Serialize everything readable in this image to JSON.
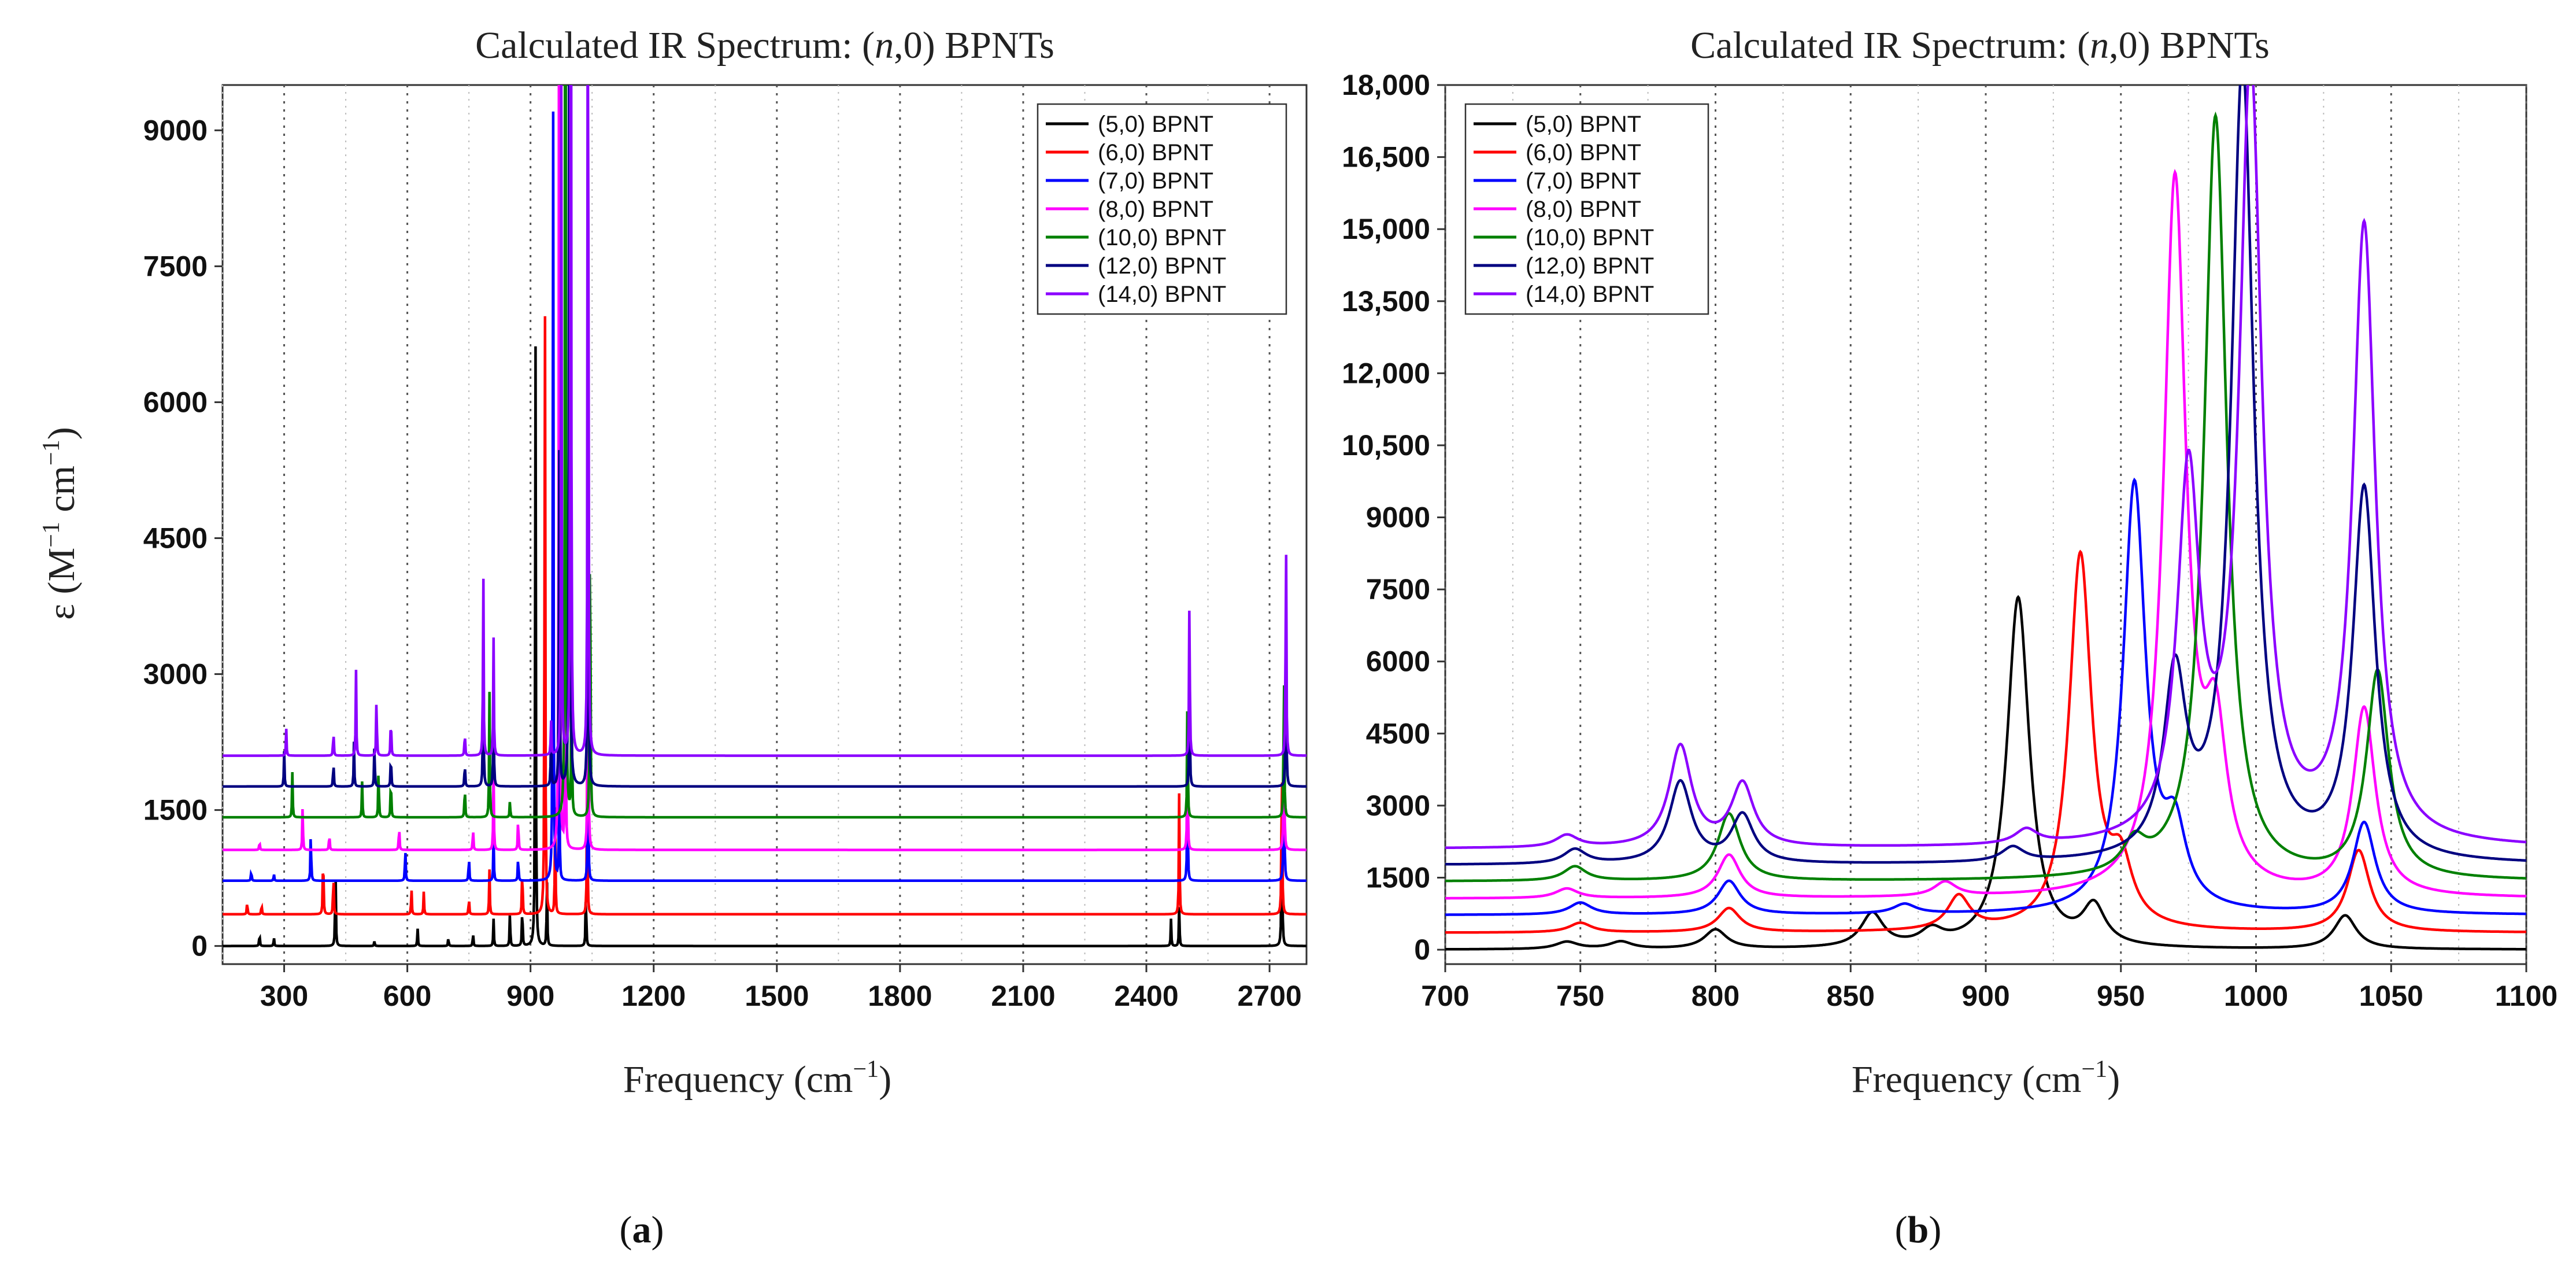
{
  "chart_data": [
    {
      "id": "a",
      "type": "line",
      "title": "Calculated IR Spectrum: (n,0) BPNTs",
      "title_parts": [
        "Calculated IR Spectrum: (",
        "n",
        ",0) BPNTs"
      ],
      "xlabel": "Frequency (cm",
      "xlabel_sup": "−1",
      "xlabel_end": ")",
      "ylabel": "ε (M",
      "ylabel_sup1": "−1",
      "ylabel_mid": " cm",
      "ylabel_sup2": "−1",
      "ylabel_end": ")",
      "caption": [
        "(",
        "a",
        ")"
      ],
      "xlim": [
        150,
        2790
      ],
      "ylim": [
        -200,
        9500
      ],
      "xticks": [
        300,
        600,
        900,
        1200,
        1500,
        1800,
        2100,
        2400,
        2700
      ],
      "xtick_labels": [
        "300",
        "600",
        "900",
        "1200",
        "1500",
        "1800",
        "2100",
        "2400",
        "2700"
      ],
      "yticks": [
        0,
        1500,
        3000,
        4500,
        6000,
        7500,
        9000
      ],
      "ytick_labels": [
        "0",
        "1500",
        "3000",
        "4500",
        "6000",
        "7500",
        "9000"
      ],
      "grid": true,
      "legend_position": "top-right",
      "width": 0.9,
      "series": [
        {
          "name": "(5,0) BPNT",
          "color": "#000000",
          "baseline": 0,
          "peaks": [
            [
              240,
              150
            ],
            [
              275,
              100
            ],
            [
              425,
              1000
            ],
            [
              520,
              60
            ],
            [
              625,
              200
            ],
            [
              700,
              100
            ],
            [
              760,
              150
            ],
            [
              810,
              300
            ],
            [
              850,
              400
            ],
            [
              880,
              500
            ],
            [
              912,
              7350
            ],
            [
              940,
              800
            ],
            [
              1035,
              700
            ],
            [
              2460,
              300
            ],
            [
              2480,
              450
            ],
            [
              2730,
              2200
            ]
          ]
        },
        {
          "name": "(6,0) BPNT",
          "color": "#ff0000",
          "baseline": 350,
          "peaks": [
            [
              210,
              150
            ],
            [
              245,
              120
            ],
            [
              395,
              800
            ],
            [
              420,
              500
            ],
            [
              610,
              300
            ],
            [
              640,
              250
            ],
            [
              750,
              200
            ],
            [
              800,
              500
            ],
            [
              880,
              600
            ],
            [
              935,
              7900
            ],
            [
              960,
              1200
            ],
            [
              1038,
              1700
            ],
            [
              2480,
              1400
            ],
            [
              2730,
              2100
            ]
          ]
        },
        {
          "name": "(7,0) BPNT",
          "color": "#0000ff",
          "baseline": 720,
          "peaks": [
            [
              220,
              120
            ],
            [
              275,
              80
            ],
            [
              365,
              600
            ],
            [
              595,
              400
            ],
            [
              750,
              300
            ],
            [
              810,
              500
            ],
            [
              870,
              300
            ],
            [
              955,
              8900
            ],
            [
              970,
              1500
            ],
            [
              1040,
              1900
            ],
            [
              2500,
              1400
            ],
            [
              2735,
              2200
            ]
          ]
        },
        {
          "name": "(8,0) BPNT",
          "color": "#ff00ff",
          "baseline": 1060,
          "peaks": [
            [
              240,
              100
            ],
            [
              345,
              500
            ],
            [
              410,
              200
            ],
            [
              580,
              300
            ],
            [
              760,
              250
            ],
            [
              810,
              900
            ],
            [
              870,
              400
            ],
            [
              970,
              14800
            ],
            [
              985,
              3000
            ],
            [
              1040,
              3900
            ],
            [
              2500,
              1400
            ],
            [
              2735,
              2100
            ]
          ]
        },
        {
          "name": "(10,0) BPNT",
          "color": "#008000",
          "baseline": 1420,
          "peaks": [
            [
              320,
              500
            ],
            [
              490,
              400
            ],
            [
              530,
              600
            ],
            [
              560,
              500
            ],
            [
              740,
              400
            ],
            [
              800,
              1400
            ],
            [
              850,
              200
            ],
            [
              985,
              15900
            ],
            [
              1000,
              2000
            ],
            [
              1045,
              4300
            ],
            [
              2500,
              1400
            ],
            [
              2735,
              2000
            ]
          ]
        },
        {
          "name": "(12,0) BPNT",
          "color": "#000080",
          "baseline": 1760,
          "peaks": [
            [
              300,
              400
            ],
            [
              420,
              300
            ],
            [
              470,
              500
            ],
            [
              520,
              500
            ],
            [
              560,
              400
            ],
            [
              740,
              300
            ],
            [
              785,
              1700
            ],
            [
              810,
              1100
            ],
            [
              950,
              700
            ],
            [
              970,
              3700
            ],
            [
              995,
              16500
            ],
            [
              1040,
              7700
            ],
            [
              2505,
              1500
            ],
            [
              2740,
              2300
            ]
          ]
        },
        {
          "name": "(14,0) BPNT",
          "color": "#8b00ff",
          "baseline": 2100,
          "peaks": [
            [
              305,
              300
            ],
            [
              420,
              300
            ],
            [
              475,
              950
            ],
            [
              525,
              700
            ],
            [
              560,
              500
            ],
            [
              740,
              300
            ],
            [
              785,
              2100
            ],
            [
              810,
              1300
            ],
            [
              950,
              400
            ],
            [
              975,
              7500
            ],
            [
              998,
              16000
            ],
            [
              1040,
              12800
            ],
            [
              2505,
              2000
            ],
            [
              2740,
              2900
            ]
          ]
        }
      ]
    },
    {
      "id": "b",
      "type": "line",
      "title": "Calculated IR Spectrum: (n,0) BPNTs",
      "title_parts": [
        "Calculated IR Spectrum: (",
        "n",
        ",0) BPNTs"
      ],
      "xlabel": "Frequency (cm",
      "xlabel_sup": "−1",
      "xlabel_end": ")",
      "caption": [
        "(",
        "b",
        ")"
      ],
      "xlim": [
        700,
        1100
      ],
      "ylim": [
        -300,
        18000
      ],
      "xticks": [
        700,
        750,
        800,
        850,
        900,
        950,
        1000,
        1050,
        1100
      ],
      "xtick_labels": [
        "700",
        "750",
        "800",
        "850",
        "900",
        "950",
        "1000",
        "1050",
        "1100"
      ],
      "yticks": [
        0,
        1500,
        3000,
        4500,
        6000,
        7500,
        9000,
        10500,
        12000,
        13500,
        15000,
        16500,
        18000
      ],
      "ytick_labels": [
        "0",
        "1500",
        "3000",
        "4500",
        "6000",
        "7500",
        "9000",
        "10,500",
        "12,000",
        "13,500",
        "15,000",
        "16,500",
        "18,000"
      ],
      "grid": true,
      "legend_position": "top-left",
      "width": 5,
      "series": [
        {
          "name": "(5,0) BPNT",
          "color": "#000000",
          "baseline": 0,
          "peaks": [
            [
              745,
              150
            ],
            [
              765,
              150
            ],
            [
              800,
              400
            ],
            [
              858,
              700
            ],
            [
              880,
              300
            ],
            [
              912,
              7300
            ],
            [
              940,
              800
            ],
            [
              1033,
              700
            ]
          ]
        },
        {
          "name": "(6,0) BPNT",
          "color": "#ff0000",
          "baseline": 350,
          "peaks": [
            [
              750,
              200
            ],
            [
              805,
              500
            ],
            [
              890,
              700
            ],
            [
              935,
              7800
            ],
            [
              950,
              1200
            ],
            [
              1038,
              1700
            ]
          ]
        },
        {
          "name": "(7,0) BPNT",
          "color": "#0000ff",
          "baseline": 720,
          "peaks": [
            [
              750,
              250
            ],
            [
              805,
              700
            ],
            [
              870,
              200
            ],
            [
              955,
              8900
            ],
            [
              970,
              1500
            ],
            [
              1040,
              1900
            ]
          ]
        },
        {
          "name": "(8,0) BPNT",
          "color": "#ff00ff",
          "baseline": 1060,
          "peaks": [
            [
              745,
              200
            ],
            [
              805,
              900
            ],
            [
              885,
              300
            ],
            [
              970,
              14800
            ],
            [
              985,
              3000
            ],
            [
              1040,
              3900
            ]
          ]
        },
        {
          "name": "(10,0) BPNT",
          "color": "#008000",
          "baseline": 1420,
          "peaks": [
            [
              748,
              300
            ],
            [
              805,
              1400
            ],
            [
              955,
              600
            ],
            [
              985,
              15900
            ],
            [
              1045,
              4300
            ]
          ]
        },
        {
          "name": "(12,0) BPNT",
          "color": "#000080",
          "baseline": 1760,
          "peaks": [
            [
              748,
              300
            ],
            [
              787,
              1700
            ],
            [
              810,
              1000
            ],
            [
              910,
              300
            ],
            [
              970,
              3700
            ],
            [
              995,
              16500
            ],
            [
              1040,
              7700
            ]
          ]
        },
        {
          "name": "(14,0) BPNT",
          "color": "#8b00ff",
          "baseline": 2100,
          "peaks": [
            [
              745,
              250
            ],
            [
              787,
              2100
            ],
            [
              810,
              1300
            ],
            [
              915,
              300
            ],
            [
              975,
              7500
            ],
            [
              998,
              16000
            ],
            [
              1040,
              12800
            ]
          ]
        }
      ]
    }
  ]
}
